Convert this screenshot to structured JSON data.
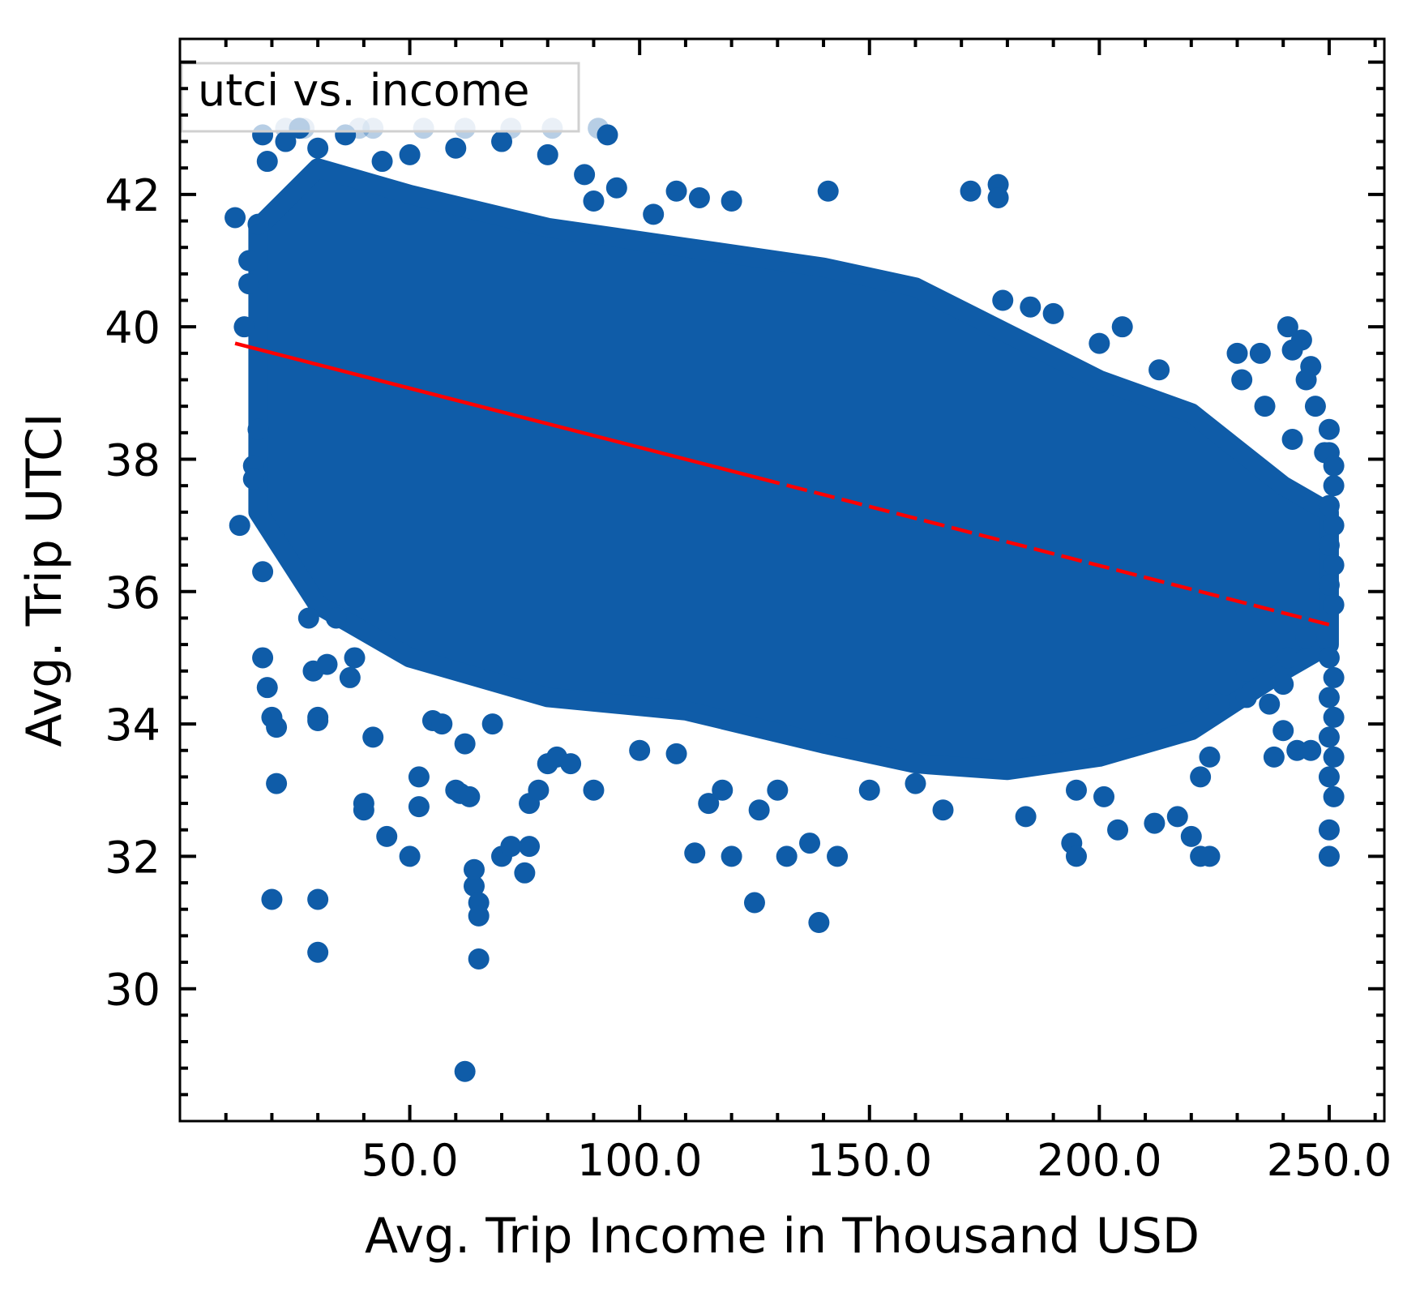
{
  "chart_data": {
    "type": "scatter",
    "xlabel": "Avg. Trip Income in Thousand USD",
    "ylabel": "Avg. Trip UTCI",
    "xlim": [
      0,
      262
    ],
    "ylim": [
      28.0,
      44.35
    ],
    "xticks": [
      50.0,
      100.0,
      150.0,
      200.0,
      250.0
    ],
    "xtick_labels": [
      "50.0",
      "100.0",
      "150.0",
      "200.0",
      "250.0"
    ],
    "yticks": [
      30,
      32,
      34,
      36,
      38,
      40,
      42
    ],
    "ytick_labels": [
      "30",
      "32",
      "34",
      "36",
      "38",
      "40",
      "42"
    ],
    "grid": false,
    "legend": {
      "position": "top-left",
      "entries": [
        "utci vs. income"
      ]
    },
    "colors": {
      "points": "#0f5ca8",
      "fit_line": "#ff0000",
      "axes": "#000000"
    },
    "series": [
      {
        "name": "utci vs. income",
        "kind": "scatter",
        "marker": "circle",
        "points": [
          [
            12,
            41.65
          ],
          [
            13,
            37.0
          ],
          [
            14,
            40.0
          ],
          [
            15,
            41.0
          ],
          [
            15,
            40.65
          ],
          [
            16,
            37.9
          ],
          [
            16,
            37.7
          ],
          [
            17,
            41.55
          ],
          [
            17,
            38.45
          ],
          [
            18,
            36.3
          ],
          [
            18,
            35.0
          ],
          [
            19,
            34.55
          ],
          [
            20,
            34.1
          ],
          [
            20,
            31.35
          ],
          [
            21,
            33.95
          ],
          [
            21,
            33.1
          ],
          [
            18,
            42.9
          ],
          [
            19,
            42.5
          ],
          [
            23,
            42.8
          ],
          [
            26,
            43.0
          ],
          [
            28,
            35.6
          ],
          [
            29,
            34.8
          ],
          [
            30,
            34.1
          ],
          [
            30,
            34.05
          ],
          [
            30,
            31.35
          ],
          [
            30,
            30.55
          ],
          [
            32,
            34.9
          ],
          [
            34,
            35.6
          ],
          [
            37,
            34.7
          ],
          [
            38,
            35.0
          ],
          [
            40,
            32.8
          ],
          [
            40,
            32.7
          ],
          [
            42,
            33.8
          ],
          [
            45,
            32.3
          ],
          [
            50,
            32.0
          ],
          [
            52,
            33.2
          ],
          [
            52,
            32.75
          ],
          [
            55,
            34.05
          ],
          [
            57,
            34.0
          ],
          [
            60,
            33.0
          ],
          [
            61,
            32.95
          ],
          [
            62,
            33.7
          ],
          [
            63,
            32.9
          ],
          [
            64,
            31.55
          ],
          [
            64,
            31.8
          ],
          [
            65,
            31.3
          ],
          [
            65,
            31.1
          ],
          [
            65,
            30.45
          ],
          [
            62,
            28.75
          ],
          [
            68,
            34.0
          ],
          [
            70,
            32.0
          ],
          [
            72,
            32.15
          ],
          [
            75,
            31.75
          ],
          [
            76,
            32.15
          ],
          [
            76,
            32.8
          ],
          [
            78,
            33.0
          ],
          [
            80,
            33.4
          ],
          [
            82,
            33.5
          ],
          [
            85,
            33.4
          ],
          [
            90,
            33.0
          ],
          [
            100,
            33.6
          ],
          [
            108,
            33.55
          ],
          [
            112,
            32.05
          ],
          [
            115,
            32.8
          ],
          [
            118,
            33.0
          ],
          [
            120,
            32.0
          ],
          [
            125,
            31.3
          ],
          [
            126,
            32.7
          ],
          [
            130,
            33.0
          ],
          [
            132,
            32.0
          ],
          [
            137,
            32.2
          ],
          [
            139,
            31.0
          ],
          [
            143,
            32.0
          ],
          [
            120,
            41.9
          ],
          [
            103,
            41.7
          ],
          [
            108,
            42.05
          ],
          [
            113,
            41.95
          ],
          [
            95,
            42.1
          ],
          [
            141,
            42.05
          ],
          [
            172,
            42.05
          ],
          [
            178,
            42.15
          ],
          [
            178,
            41.95
          ],
          [
            179,
            40.4
          ],
          [
            185,
            40.3
          ],
          [
            190,
            40.2
          ],
          [
            200,
            39.75
          ],
          [
            205,
            40.0
          ],
          [
            213,
            39.35
          ],
          [
            230,
            39.6
          ],
          [
            235,
            39.6
          ],
          [
            231,
            39.2
          ],
          [
            236,
            38.8
          ],
          [
            241,
            40.0
          ],
          [
            244,
            39.8
          ],
          [
            242,
            39.65
          ],
          [
            246,
            39.4
          ],
          [
            245,
            39.2
          ],
          [
            247,
            38.8
          ],
          [
            242,
            38.3
          ],
          [
            249,
            38.1
          ],
          [
            250,
            38.45
          ],
          [
            250,
            38.1
          ],
          [
            251,
            37.9
          ],
          [
            251,
            37.6
          ],
          [
            250,
            37.3
          ],
          [
            251,
            37.0
          ],
          [
            250,
            36.7
          ],
          [
            251,
            36.4
          ],
          [
            250,
            36.1
          ],
          [
            251,
            35.8
          ],
          [
            249,
            35.3
          ],
          [
            250,
            35.0
          ],
          [
            251,
            34.7
          ],
          [
            250,
            34.4
          ],
          [
            251,
            34.1
          ],
          [
            250,
            33.8
          ],
          [
            251,
            33.5
          ],
          [
            250,
            33.2
          ],
          [
            251,
            32.9
          ],
          [
            250,
            32.4
          ],
          [
            250,
            32.0
          ],
          [
            245,
            35.3
          ],
          [
            241,
            35.0
          ],
          [
            240,
            34.6
          ],
          [
            237,
            34.3
          ],
          [
            240,
            33.9
          ],
          [
            243,
            33.6
          ],
          [
            246,
            33.6
          ],
          [
            238,
            33.5
          ],
          [
            232,
            34.8
          ],
          [
            232,
            34.4
          ],
          [
            226,
            34.3
          ],
          [
            224,
            33.5
          ],
          [
            222,
            33.2
          ],
          [
            217,
            32.6
          ],
          [
            220,
            32.3
          ],
          [
            222,
            32.0
          ],
          [
            224,
            32.0
          ],
          [
            212,
            32.5
          ],
          [
            204,
            32.4
          ],
          [
            201,
            32.9
          ],
          [
            195,
            33.0
          ],
          [
            194,
            32.2
          ],
          [
            195,
            32.0
          ],
          [
            184,
            32.6
          ],
          [
            166,
            32.7
          ],
          [
            160,
            33.1
          ],
          [
            150,
            33.0
          ],
          [
            80,
            42.6
          ],
          [
            88,
            42.3
          ],
          [
            90,
            41.9
          ],
          [
            93,
            42.9
          ],
          [
            70,
            42.8
          ],
          [
            60,
            42.7
          ],
          [
            50,
            42.6
          ],
          [
            44,
            42.5
          ],
          [
            36,
            42.9
          ],
          [
            30,
            42.7
          ]
        ],
        "faded_points_above_axis": [
          [
            23,
            43.0
          ],
          [
            27,
            43.0
          ],
          [
            39,
            43.0
          ],
          [
            42,
            43.0
          ],
          [
            53,
            43.0
          ],
          [
            62,
            43.0
          ],
          [
            72,
            43.0
          ],
          [
            81,
            43.0
          ],
          [
            91,
            43.0
          ]
        ],
        "dense_band": {
          "description": "heavily overplotted cloud",
          "upper_edge": [
            [
              17,
              41.5
            ],
            [
              30,
              42.4
            ],
            [
              50,
              42.0
            ],
            [
              80,
              41.5
            ],
            [
              110,
              41.2
            ],
            [
              140,
              40.9
            ],
            [
              160,
              40.6
            ],
            [
              180,
              39.9
            ],
            [
              200,
              39.2
            ],
            [
              220,
              38.7
            ],
            [
              240,
              37.6
            ],
            [
              250,
              37.2
            ]
          ],
          "lower_edge": [
            [
              17,
              37.2
            ],
            [
              30,
              35.8
            ],
            [
              50,
              35.0
            ],
            [
              80,
              34.4
            ],
            [
              110,
              34.2
            ],
            [
              140,
              33.7
            ],
            [
              160,
              33.4
            ],
            [
              180,
              33.3
            ],
            [
              200,
              33.5
            ],
            [
              220,
              33.9
            ],
            [
              240,
              34.8
            ],
            [
              250,
              35.2
            ]
          ]
        }
      },
      {
        "name": "",
        "kind": "line",
        "style": "fit",
        "x": [
          12,
          250
        ],
        "y": [
          39.75,
          35.5
        ],
        "solid_until_x": 126
      }
    ]
  }
}
